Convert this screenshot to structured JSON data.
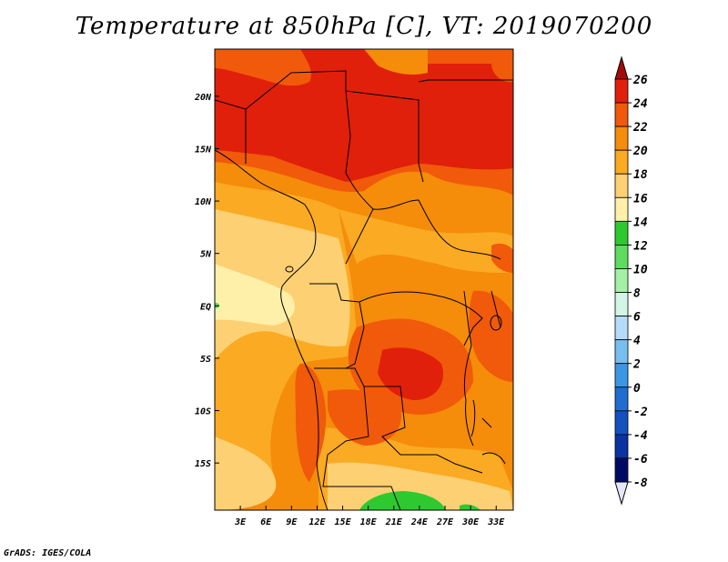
{
  "title": "Temperature at 850hPa [C], VT: 2019070200",
  "credit": "GrADS: IGES/COLA",
  "map": {
    "lon_labels": [
      "3E",
      "6E",
      "9E",
      "12E",
      "15E",
      "18E",
      "21E",
      "24E",
      "27E",
      "30E",
      "33E"
    ],
    "lat_labels": [
      "20N",
      "15N",
      "10N",
      "5N",
      "EQ",
      "5S",
      "10S",
      "15S"
    ],
    "lon_range": [
      0,
      35
    ],
    "lat_range": [
      -19.5,
      24.5
    ]
  },
  "colorbar": {
    "labels": [
      "26",
      "24",
      "22",
      "20",
      "18",
      "16",
      "14",
      "12",
      "10",
      "8",
      "6",
      "4",
      "2",
      "0",
      "-2",
      "-4",
      "-6",
      "-8"
    ],
    "colors": [
      "#a50a0a",
      "#e0200a",
      "#f05a0a",
      "#f58c0a",
      "#fbaa23",
      "#fdd073",
      "#fef0a8",
      "#2ec92e",
      "#5ddc5d",
      "#a5f0a5",
      "#d2f5e6",
      "#b4dcfa",
      "#78bef0",
      "#3c96e6",
      "#1e6ed2",
      "#1450be",
      "#0a32a0",
      "#000a64",
      "#e6e6fa"
    ]
  }
}
